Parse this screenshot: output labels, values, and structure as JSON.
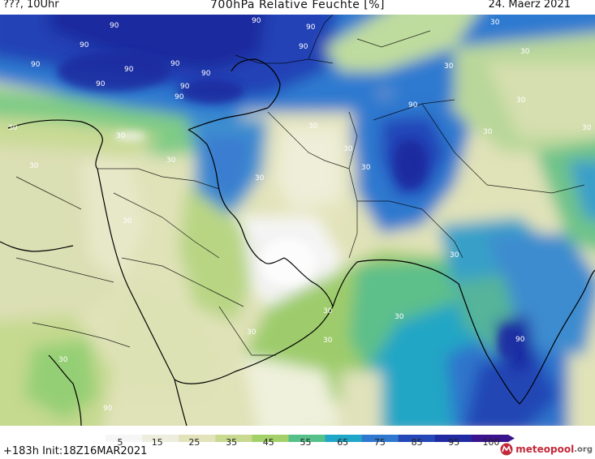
{
  "header": {
    "left": "???, 10Uhr",
    "center": "700hPa Relative Feuchte [%]",
    "right": "24. Maerz 2021"
  },
  "colorbar": {
    "labels": [
      "5",
      "15",
      "25",
      "35",
      "45",
      "55",
      "65",
      "75",
      "85",
      "95",
      "100"
    ],
    "colors": [
      "#f6f6f6",
      "#eeeedf",
      "#e2e2bb",
      "#c9d98f",
      "#a4d06a",
      "#56c08a",
      "#20a7c8",
      "#2f78cf",
      "#2448b8",
      "#1f2aa3",
      "#3a148c"
    ]
  },
  "footer": {
    "run_info": "+183h Init:18Z16MAR2021",
    "logo_text": "meteopool",
    "logo_suffix": ".org"
  },
  "map": {
    "contour_labels": [
      "90",
      "90",
      "90",
      "90",
      "90",
      "90",
      "90",
      "90",
      "90",
      "90",
      "90",
      "90",
      "90",
      "30",
      "30",
      "30",
      "30",
      "30",
      "30",
      "30",
      "30",
      "30",
      "30",
      "30",
      "30",
      "30",
      "30",
      "30",
      "30",
      "30",
      "30",
      "30",
      "30",
      "30",
      "90",
      "90"
    ]
  }
}
